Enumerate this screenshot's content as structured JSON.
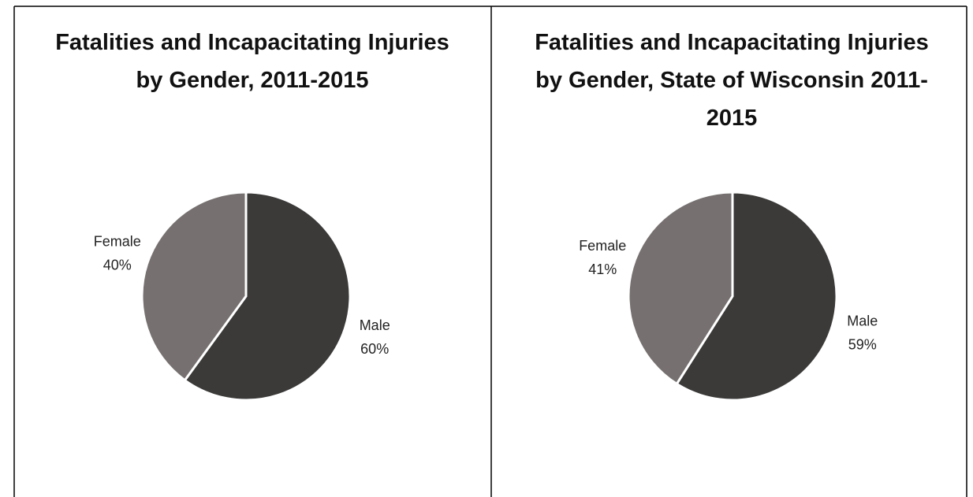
{
  "chart_data": [
    {
      "type": "pie",
      "title": "Fatalities and Incapacitating Injuries by Gender, 2011-2015",
      "categories": [
        "Male",
        "Female"
      ],
      "values": [
        60,
        40
      ],
      "value_labels": [
        "60%",
        "40%"
      ],
      "colors": [
        "#3b3a39",
        "#767170"
      ]
    },
    {
      "type": "pie",
      "title": "Fatalities and Incapacitating Injuries by Gender, State of Wisconsin 2011-2015",
      "categories": [
        "Male",
        "Female"
      ],
      "values": [
        59,
        41
      ],
      "value_labels": [
        "59%",
        "41%"
      ],
      "colors": [
        "#3b3a39",
        "#767170"
      ]
    }
  ]
}
